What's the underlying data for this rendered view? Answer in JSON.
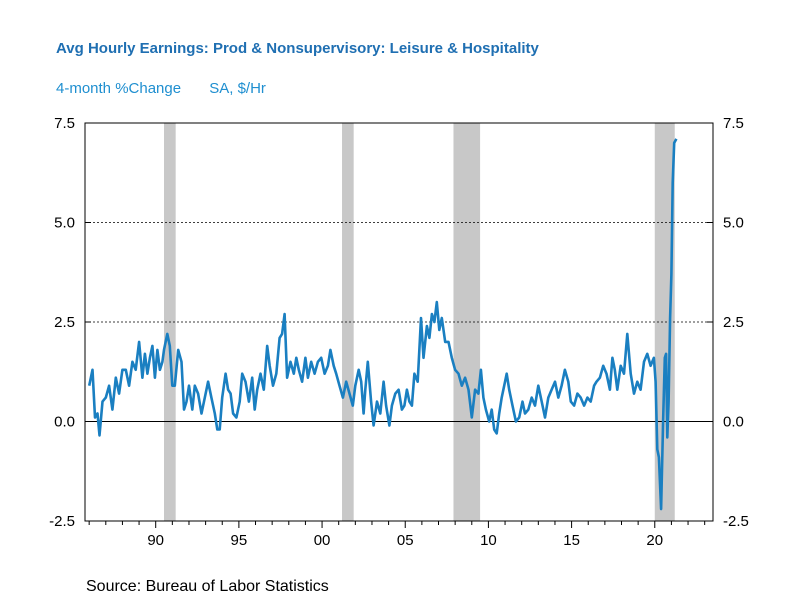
{
  "title": "Avg Hourly Earnings: Prod & Nonsupervisory: Leisure & Hospitality",
  "subtitle": {
    "measure": "4-month %Change",
    "units": "SA, $/Hr"
  },
  "source": "Source:  Bureau of Labor Statistics",
  "colors": {
    "line": "#1a7fc1",
    "recession": "#c8c8c8",
    "title": "#1f6fb2"
  },
  "chart_data": {
    "type": "line",
    "title": "Avg Hourly Earnings: Prod & Nonsupervisory: Leisure & Hospitality",
    "subtitle": "4-month %Change    SA, $/Hr",
    "xlabel": "",
    "ylabel": "",
    "xlim": [
      1985.75,
      2023.5
    ],
    "ylim": [
      -2.5,
      7.5
    ],
    "yticks": [
      "-2.5",
      "0.0",
      "2.5",
      "5.0",
      "7.5"
    ],
    "yticks_values": [
      -2.5,
      0.0,
      2.5,
      5.0,
      7.5
    ],
    "xticks": [
      "90",
      "95",
      "00",
      "05",
      "10",
      "15",
      "20"
    ],
    "xticks_values": [
      1990,
      1995,
      2000,
      2005,
      2010,
      2015,
      2020
    ],
    "gridlines_dotted": [
      2.5,
      5.0
    ],
    "zero_line": 0.0,
    "recessions": [
      [
        1990.5,
        1991.2
      ],
      [
        2001.2,
        2001.9
      ],
      [
        2007.9,
        2009.5
      ],
      [
        2020.0,
        2021.2
      ]
    ],
    "series": [
      {
        "values": [
          [
            1986.0,
            0.9
          ],
          [
            1986.2,
            1.3
          ],
          [
            1986.35,
            0.1
          ],
          [
            1986.5,
            0.2
          ],
          [
            1986.62,
            -0.35
          ],
          [
            1986.8,
            0.5
          ],
          [
            1987.0,
            0.6
          ],
          [
            1987.2,
            0.9
          ],
          [
            1987.4,
            0.3
          ],
          [
            1987.6,
            1.1
          ],
          [
            1987.8,
            0.7
          ],
          [
            1988.0,
            1.3
          ],
          [
            1988.2,
            1.3
          ],
          [
            1988.4,
            0.9
          ],
          [
            1988.6,
            1.5
          ],
          [
            1988.8,
            1.3
          ],
          [
            1989.0,
            2.0
          ],
          [
            1989.2,
            1.1
          ],
          [
            1989.35,
            1.7
          ],
          [
            1989.5,
            1.2
          ],
          [
            1989.65,
            1.6
          ],
          [
            1989.8,
            1.9
          ],
          [
            1989.95,
            1.1
          ],
          [
            1990.1,
            1.8
          ],
          [
            1990.25,
            1.3
          ],
          [
            1990.4,
            1.5
          ],
          [
            1990.5,
            1.8
          ],
          [
            1990.7,
            2.2
          ],
          [
            1990.85,
            1.9
          ],
          [
            1991.0,
            0.9
          ],
          [
            1991.15,
            0.9
          ],
          [
            1991.35,
            1.8
          ],
          [
            1991.55,
            1.5
          ],
          [
            1991.7,
            0.3
          ],
          [
            1991.85,
            0.5
          ],
          [
            1992.0,
            0.9
          ],
          [
            1992.2,
            0.3
          ],
          [
            1992.35,
            0.9
          ],
          [
            1992.55,
            0.7
          ],
          [
            1992.75,
            0.2
          ],
          [
            1992.95,
            0.6
          ],
          [
            1993.15,
            1.0
          ],
          [
            1993.35,
            0.6
          ],
          [
            1993.55,
            0.2
          ],
          [
            1993.7,
            -0.2
          ],
          [
            1993.85,
            -0.2
          ],
          [
            1994.0,
            0.6
          ],
          [
            1994.2,
            1.2
          ],
          [
            1994.35,
            0.8
          ],
          [
            1994.5,
            0.7
          ],
          [
            1994.65,
            0.2
          ],
          [
            1994.85,
            0.1
          ],
          [
            1995.05,
            0.5
          ],
          [
            1995.2,
            1.2
          ],
          [
            1995.4,
            1.0
          ],
          [
            1995.6,
            0.5
          ],
          [
            1995.8,
            1.1
          ],
          [
            1995.95,
            0.3
          ],
          [
            1996.1,
            0.8
          ],
          [
            1996.3,
            1.2
          ],
          [
            1996.5,
            0.8
          ],
          [
            1996.7,
            1.9
          ],
          [
            1996.85,
            1.4
          ],
          [
            1997.05,
            0.9
          ],
          [
            1997.25,
            1.2
          ],
          [
            1997.45,
            2.1
          ],
          [
            1997.6,
            2.2
          ],
          [
            1997.75,
            2.7
          ],
          [
            1997.9,
            1.1
          ],
          [
            1998.1,
            1.5
          ],
          [
            1998.3,
            1.2
          ],
          [
            1998.45,
            1.6
          ],
          [
            1998.6,
            1.3
          ],
          [
            1998.8,
            1.0
          ],
          [
            1999.0,
            1.6
          ],
          [
            1999.15,
            1.1
          ],
          [
            1999.35,
            1.5
          ],
          [
            1999.55,
            1.2
          ],
          [
            1999.75,
            1.5
          ],
          [
            1999.95,
            1.6
          ],
          [
            2000.15,
            1.2
          ],
          [
            2000.35,
            1.4
          ],
          [
            2000.5,
            1.8
          ],
          [
            2000.7,
            1.4
          ],
          [
            2000.85,
            1.2
          ],
          [
            2001.05,
            0.9
          ],
          [
            2001.25,
            0.6
          ],
          [
            2001.45,
            1.0
          ],
          [
            2001.65,
            0.7
          ],
          [
            2001.85,
            0.4
          ],
          [
            2002.0,
            0.9
          ],
          [
            2002.2,
            1.3
          ],
          [
            2002.35,
            1.0
          ],
          [
            2002.5,
            0.2
          ],
          [
            2002.6,
            0.8
          ],
          [
            2002.75,
            1.5
          ],
          [
            2002.95,
            0.5
          ],
          [
            2003.1,
            -0.1
          ],
          [
            2003.3,
            0.5
          ],
          [
            2003.5,
            0.2
          ],
          [
            2003.7,
            1.0
          ],
          [
            2003.85,
            0.4
          ],
          [
            2004.05,
            -0.1
          ],
          [
            2004.2,
            0.4
          ],
          [
            2004.4,
            0.7
          ],
          [
            2004.6,
            0.8
          ],
          [
            2004.8,
            0.3
          ],
          [
            2004.95,
            0.4
          ],
          [
            2005.1,
            0.8
          ],
          [
            2005.25,
            0.5
          ],
          [
            2005.4,
            0.4
          ],
          [
            2005.55,
            1.2
          ],
          [
            2005.75,
            1.0
          ],
          [
            2005.95,
            2.6
          ],
          [
            2006.1,
            1.6
          ],
          [
            2006.3,
            2.4
          ],
          [
            2006.45,
            2.1
          ],
          [
            2006.6,
            2.7
          ],
          [
            2006.75,
            2.5
          ],
          [
            2006.9,
            3.0
          ],
          [
            2007.05,
            2.3
          ],
          [
            2007.2,
            2.6
          ],
          [
            2007.4,
            2.0
          ],
          [
            2007.6,
            2.0
          ],
          [
            2007.8,
            1.6
          ],
          [
            2008.0,
            1.3
          ],
          [
            2008.2,
            1.2
          ],
          [
            2008.4,
            0.9
          ],
          [
            2008.6,
            1.1
          ],
          [
            2008.8,
            0.8
          ],
          [
            2009.0,
            0.1
          ],
          [
            2009.2,
            0.8
          ],
          [
            2009.4,
            0.7
          ],
          [
            2009.55,
            1.3
          ],
          [
            2009.7,
            0.6
          ],
          [
            2009.85,
            0.3
          ],
          [
            2010.05,
            0.0
          ],
          [
            2010.2,
            0.3
          ],
          [
            2010.35,
            -0.2
          ],
          [
            2010.5,
            -0.3
          ],
          [
            2010.65,
            0.2
          ],
          [
            2010.8,
            0.6
          ],
          [
            2010.95,
            0.9
          ],
          [
            2011.1,
            1.2
          ],
          [
            2011.25,
            0.8
          ],
          [
            2011.45,
            0.4
          ],
          [
            2011.65,
            0.0
          ],
          [
            2011.85,
            0.1
          ],
          [
            2012.05,
            0.5
          ],
          [
            2012.2,
            0.2
          ],
          [
            2012.4,
            0.3
          ],
          [
            2012.6,
            0.6
          ],
          [
            2012.8,
            0.4
          ],
          [
            2013.0,
            0.9
          ],
          [
            2013.2,
            0.5
          ],
          [
            2013.4,
            0.1
          ],
          [
            2013.6,
            0.6
          ],
          [
            2013.8,
            0.8
          ],
          [
            2014.0,
            1.0
          ],
          [
            2014.2,
            0.6
          ],
          [
            2014.4,
            0.9
          ],
          [
            2014.6,
            1.3
          ],
          [
            2014.8,
            1.0
          ],
          [
            2014.95,
            0.5
          ],
          [
            2015.15,
            0.4
          ],
          [
            2015.35,
            0.7
          ],
          [
            2015.55,
            0.6
          ],
          [
            2015.75,
            0.4
          ],
          [
            2015.95,
            0.6
          ],
          [
            2016.15,
            0.5
          ],
          [
            2016.35,
            0.9
          ],
          [
            2016.5,
            1.0
          ],
          [
            2016.7,
            1.1
          ],
          [
            2016.9,
            1.4
          ],
          [
            2017.1,
            1.2
          ],
          [
            2017.3,
            0.8
          ],
          [
            2017.45,
            1.6
          ],
          [
            2017.6,
            1.3
          ],
          [
            2017.75,
            0.8
          ],
          [
            2017.95,
            1.4
          ],
          [
            2018.15,
            1.2
          ],
          [
            2018.35,
            2.2
          ],
          [
            2018.55,
            1.2
          ],
          [
            2018.75,
            0.7
          ],
          [
            2018.95,
            1.0
          ],
          [
            2019.15,
            0.8
          ],
          [
            2019.35,
            1.5
          ],
          [
            2019.55,
            1.7
          ],
          [
            2019.75,
            1.4
          ],
          [
            2019.95,
            1.6
          ],
          [
            2020.05,
            1.0
          ],
          [
            2020.15,
            -0.7
          ],
          [
            2020.25,
            -0.9
          ],
          [
            2020.38,
            -2.2
          ],
          [
            2020.5,
            0.0
          ],
          [
            2020.6,
            1.6
          ],
          [
            2020.68,
            1.7
          ],
          [
            2020.75,
            -0.4
          ],
          [
            2020.83,
            0.5
          ],
          [
            2020.92,
            2.6
          ],
          [
            2021.0,
            3.7
          ],
          [
            2021.08,
            6.0
          ],
          [
            2021.17,
            7.0
          ],
          [
            2021.3,
            7.1
          ]
        ]
      }
    ]
  }
}
